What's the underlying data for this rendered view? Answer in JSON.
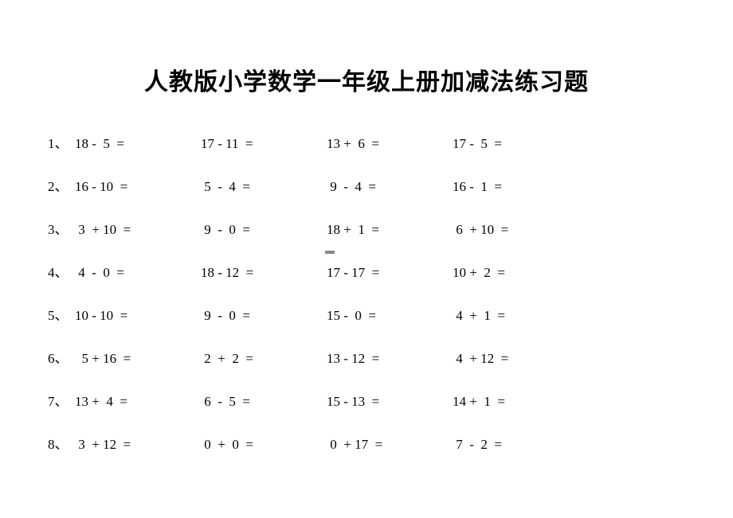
{
  "title": "人教版小学数学一年级上册加减法练习题",
  "title_fontsize": 30,
  "title_fontweight": 700,
  "body_fontsize": 17,
  "text_color": "#000000",
  "background_color": "#ffffff",
  "rows": [
    {
      "idx": "1、",
      "cells": [
        "18 -  5  =",
        "17 - 11  =",
        "13 +  6  =",
        "17 -  5  ="
      ]
    },
    {
      "idx": "2、",
      "cells": [
        "16 - 10  =",
        " 5  -  4  =",
        " 9  -  4  =",
        "16 -  1  ="
      ]
    },
    {
      "idx": "3、",
      "cells": [
        " 3  + 10  =",
        " 9  -  0  =",
        "18 +  1  =",
        " 6  + 10  ="
      ]
    },
    {
      "idx": "4、",
      "cells": [
        " 4  -  0  =",
        "18 - 12  =",
        "17 - 17  =",
        "10 +  2  ="
      ]
    },
    {
      "idx": "5、",
      "cells": [
        "10 - 10  =",
        " 9  -  0  =",
        "15 -  0  =",
        " 4  +  1  ="
      ]
    },
    {
      "idx": "6、",
      "cells": [
        "  5 + 16  =",
        " 2  +  2  =",
        "13 - 12  =",
        " 4  + 12  ="
      ]
    },
    {
      "idx": "7、",
      "cells": [
        "13 +  4  =",
        " 6  -  5  =",
        "15 - 13  =",
        "14 +  1  ="
      ]
    },
    {
      "idx": "8、",
      "cells": [
        " 3  + 12  =",
        " 0  +  0  =",
        " 0  + 17  =",
        " 7  -  2  ="
      ]
    }
  ]
}
